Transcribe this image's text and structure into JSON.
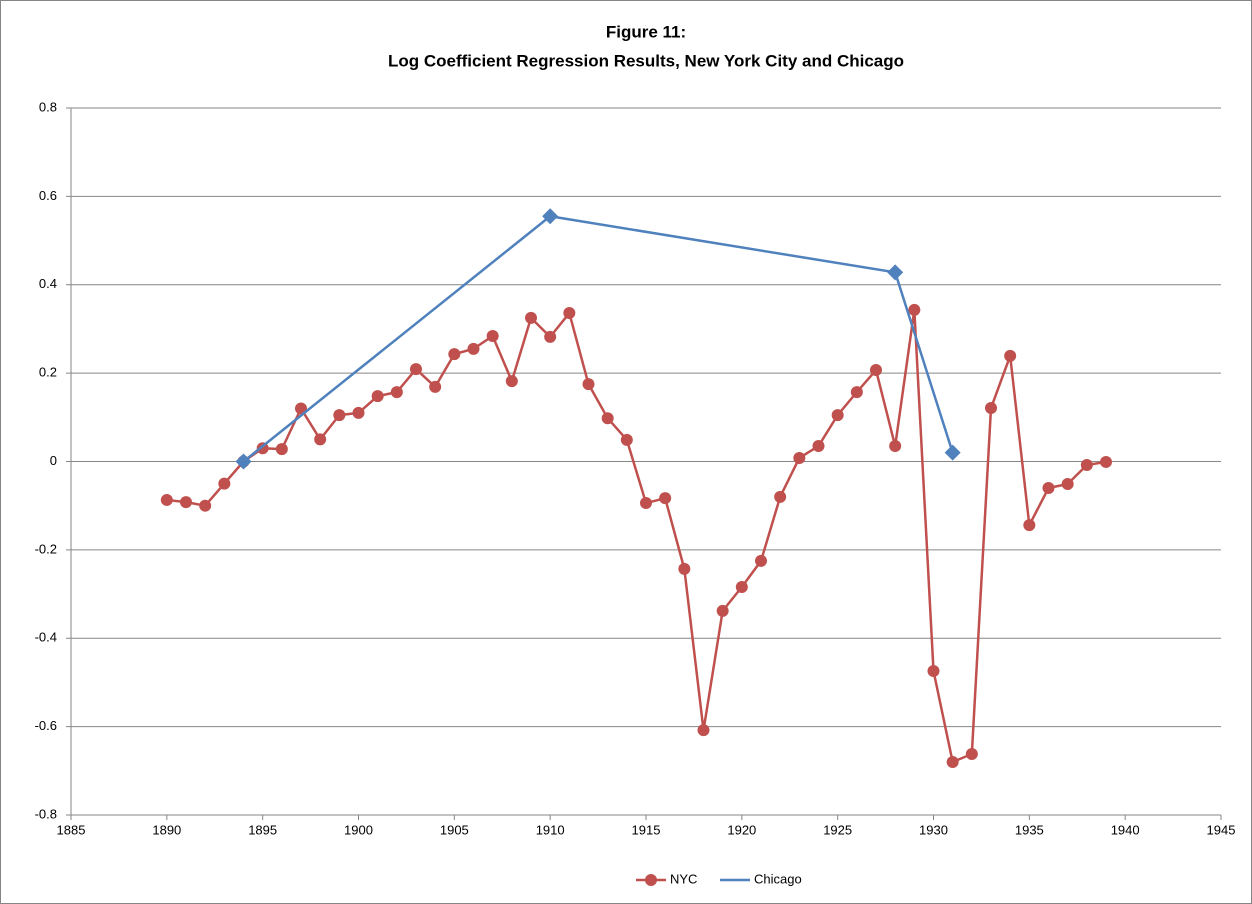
{
  "chart_data": {
    "type": "line",
    "title": "Figure 11:",
    "subtitle": "Log Coefficient Regression Results, New York City and Chicago",
    "series": [
      {
        "name": "NYC",
        "color": "#c0504d",
        "marker": "circle",
        "x": [
          1890,
          1891,
          1892,
          1893,
          1894,
          1895,
          1896,
          1897,
          1898,
          1899,
          1900,
          1901,
          1902,
          1903,
          1904,
          1905,
          1906,
          1907,
          1908,
          1909,
          1910,
          1911,
          1912,
          1913,
          1914,
          1915,
          1916,
          1917,
          1918,
          1919,
          1920,
          1921,
          1922,
          1923,
          1924,
          1925,
          1926,
          1927,
          1928,
          1929,
          1930,
          1931,
          1932,
          1933,
          1934,
          1935,
          1936,
          1937,
          1938,
          1939
        ],
        "values": [
          -0.087,
          -0.092,
          -0.1,
          -0.05,
          0,
          0.03,
          0.028,
          0.12,
          0.05,
          0.105,
          0.11,
          0.148,
          0.157,
          0.209,
          0.169,
          0.243,
          0.255,
          0.284,
          0.182,
          0.325,
          0.282,
          0.336,
          0.175,
          0.098,
          0.049,
          -0.094,
          -0.083,
          -0.243,
          -0.608,
          -0.338,
          -0.284,
          -0.225,
          -0.08,
          0.008,
          0.035,
          0.105,
          0.157,
          0.207,
          0.035,
          0.343,
          -0.474,
          -0.68,
          -0.662,
          0.121,
          0.239,
          -0.144,
          -0.06,
          -0.051,
          -0.008,
          -0.001
        ]
      },
      {
        "name": "Chicago",
        "color": "#4f81bd",
        "marker": "diamond",
        "x": [
          1894,
          1910,
          1928,
          1931
        ],
        "values": [
          0,
          0.555,
          0.428,
          0.02
        ]
      }
    ],
    "xlim": [
      1885,
      1945
    ],
    "xticks": [
      1885,
      1890,
      1895,
      1900,
      1905,
      1910,
      1915,
      1920,
      1925,
      1930,
      1935,
      1940,
      1945
    ],
    "ylim": [
      -0.8,
      0.8
    ],
    "yticks": [
      -0.8,
      -0.6,
      -0.4,
      -0.2,
      0,
      0.2,
      0.4,
      0.6,
      0.8
    ],
    "grid": true,
    "legend": "bottom"
  }
}
